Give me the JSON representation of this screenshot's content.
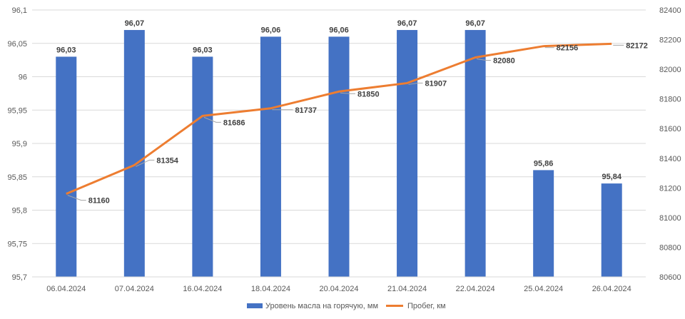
{
  "chart_data": {
    "type": "bar+line",
    "categories": [
      "06.04.2024",
      "07.04.2024",
      "16.04.2024",
      "18.04.2024",
      "20.04.2024",
      "21.04.2024",
      "22.04.2024",
      "25.04.2024",
      "26.04.2024"
    ],
    "series": [
      {
        "name": "Уровень масла на горячую, мм",
        "type": "bar",
        "axis": "left",
        "color": "#4472C4",
        "values": [
          96.03,
          96.07,
          96.03,
          96.06,
          96.06,
          96.07,
          96.07,
          95.86,
          95.84
        ],
        "labels": [
          "96,03",
          "96,07",
          "96,03",
          "96,06",
          "96,06",
          "96,07",
          "96,07",
          "95,86",
          "95,84"
        ]
      },
      {
        "name": "Пробег, км",
        "type": "line",
        "axis": "right",
        "color": "#ED7D31",
        "values": [
          81160,
          81354,
          81686,
          81737,
          81850,
          81907,
          82080,
          82156,
          82172
        ],
        "labels": [
          "81160",
          "81354",
          "81686",
          "81737",
          "81850",
          "81907",
          "82080",
          "82156",
          "82172"
        ]
      }
    ],
    "y_left": {
      "min": 95.7,
      "max": 96.1,
      "ticks": [
        95.7,
        95.75,
        95.8,
        95.85,
        95.9,
        95.95,
        96.0,
        96.05,
        96.1
      ],
      "tick_labels": [
        "95,7",
        "95,75",
        "95,8",
        "95,85",
        "95,9",
        "95,95",
        "96",
        "96,05",
        "96,1"
      ]
    },
    "y_right": {
      "min": 80600,
      "max": 82400,
      "ticks": [
        80600,
        80800,
        81000,
        81200,
        81400,
        81600,
        81800,
        82000,
        82200,
        82400
      ],
      "tick_labels": [
        "80600",
        "80800",
        "81000",
        "81200",
        "81400",
        "81600",
        "81800",
        "82000",
        "82200",
        "82400"
      ]
    },
    "grid": true,
    "legend_position": "bottom",
    "title": "",
    "xlabel": "",
    "ylabel": ""
  }
}
